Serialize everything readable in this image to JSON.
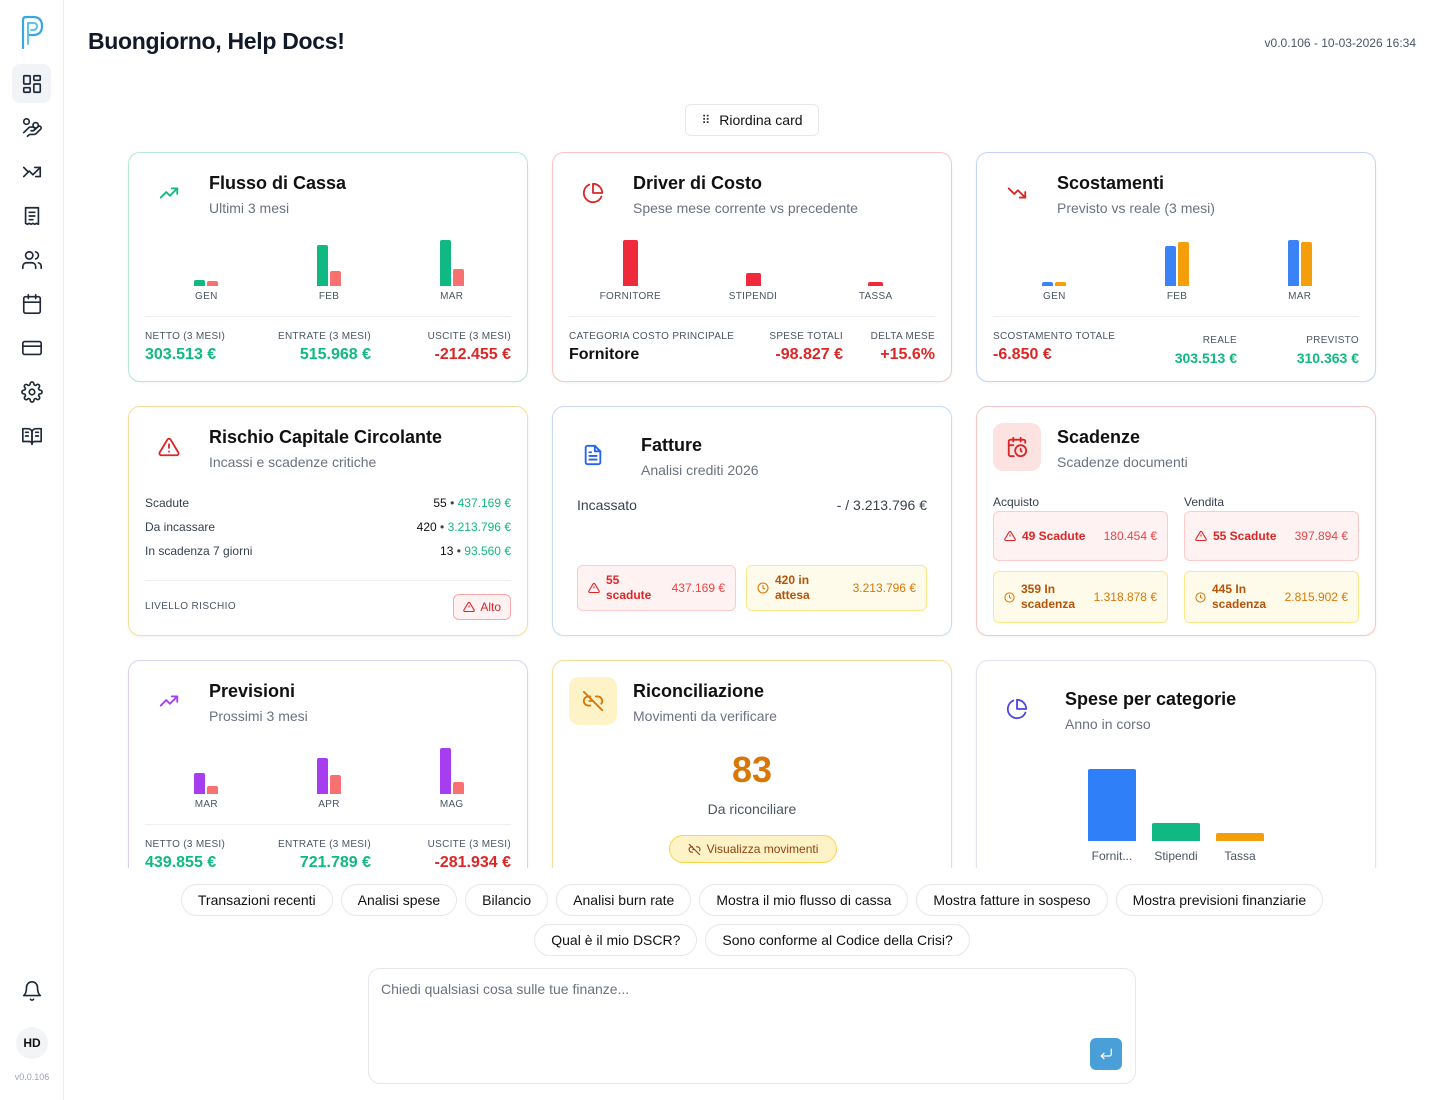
{
  "sidebar": {
    "logo": "p-logo-icon",
    "items": [
      {
        "name": "dashboard",
        "icon": "dashboard-grid-icon",
        "active": true
      },
      {
        "name": "transactions",
        "icon": "hand-coins-icon"
      },
      {
        "name": "trends",
        "icon": "trend-arrows-icon"
      },
      {
        "name": "documents",
        "icon": "receipt-icon"
      },
      {
        "name": "contacts",
        "icon": "users-icon"
      },
      {
        "name": "calendar",
        "icon": "calendar-icon"
      },
      {
        "name": "payments",
        "icon": "credit-card-icon"
      },
      {
        "name": "settings",
        "icon": "gear-icon"
      },
      {
        "name": "guide",
        "icon": "book-open-icon"
      }
    ],
    "avatar": "HD",
    "version": "v0.0.106"
  },
  "header": {
    "greeting": "Buongiorno, Help Docs!",
    "version_stamp": "v0.0.106 - 10-03-2026 16:34"
  },
  "reorder_label": "Riordina card",
  "cards": {
    "cashflow": {
      "title": "Flusso di Cassa",
      "subtitle": "Ultimi 3 mesi",
      "chart_data": {
        "type": "bar",
        "categories": [
          "GEN",
          "FEB",
          "MAR"
        ],
        "series": [
          {
            "values": [
              6000,
              43000,
              48000
            ],
            "color": "#10b981"
          },
          {
            "values": [
              5500,
              16000,
              18000
            ],
            "color": "#f87171"
          }
        ],
        "ylim": [
          0,
          50000
        ]
      },
      "stats": [
        {
          "label": "NETTO (3 MESI)",
          "value": "303.513 €"
        },
        {
          "label": "ENTRATE (3 MESI)",
          "value": "515.968 €"
        },
        {
          "label": "USCITE (3 MESI)",
          "value": "-212.455 €"
        }
      ]
    },
    "cost_driver": {
      "title": "Driver di Costo",
      "subtitle": "Spese mese corrente vs precedente",
      "chart_data": {
        "type": "bar",
        "categories": [
          "FORNITORE",
          "STIPENDI",
          "TASSA"
        ],
        "series": [
          {
            "values": [
              48,
              14,
              4
            ],
            "color": "#ef2b3b"
          }
        ],
        "ylim": [
          0,
          50
        ]
      },
      "stats": [
        {
          "label": "CATEGORIA COSTO PRINCIPALE",
          "value": "Fornitore"
        },
        {
          "label": "SPESE TOTALI",
          "value": "-98.827 €"
        },
        {
          "label": "DELTA MESE",
          "value": "+15.6%"
        }
      ]
    },
    "variance": {
      "title": "Scostamenti",
      "subtitle": "Previsto vs reale (3 mesi)",
      "chart_data": {
        "type": "bar",
        "categories": [
          "GEN",
          "FEB",
          "MAR"
        ],
        "series": [
          {
            "values": [
              4,
              42,
              48
            ],
            "color": "#3b82f6"
          },
          {
            "values": [
              4,
              46,
              46
            ],
            "color": "#f59e0b"
          }
        ],
        "ylim": [
          0,
          50
        ]
      },
      "stats": [
        {
          "label": "SCOSTAMENTO TOTALE",
          "value": "-6.850 €"
        },
        {
          "label": "REALE",
          "value": "303.513 €"
        },
        {
          "label": "PREVISTO",
          "value": "310.363 €"
        }
      ]
    },
    "working_capital": {
      "title": "Rischio Capitale Circolante",
      "subtitle": "Incassi e scadenze critiche",
      "rows": [
        {
          "label": "Scadute",
          "count": "55",
          "amount": "437.169 €"
        },
        {
          "label": "Da incassare",
          "count": "420",
          "amount": "3.213.796 €"
        },
        {
          "label": "In scadenza 7 giorni",
          "count": "13",
          "amount": "93.560 €"
        }
      ],
      "separator": "•",
      "level_label": "LIVELLO RISCHIO",
      "level_value": "Alto"
    },
    "invoices": {
      "title": "Fatture",
      "subtitle": "Analisi crediti 2026",
      "row_label": "Incassato",
      "row_value": "- / 3.213.796 €",
      "overdue": {
        "label_1": "55",
        "label_2": "scadute",
        "value": "437.169 €"
      },
      "pending": {
        "label_1": "420 in",
        "label_2": "attesa",
        "value": "3.213.796 €"
      }
    },
    "deadlines": {
      "title": "Scadenze",
      "subtitle": "Scadenze documenti",
      "purchase_label": "Acquisto",
      "sales_label": "Vendita",
      "purchase_overdue": {
        "label": "49 Scadute",
        "value": "180.454 €"
      },
      "purchase_due": {
        "label_1": "359 In",
        "label_2": "scadenza",
        "value": "1.318.878 €"
      },
      "sales_overdue": {
        "label": "55 Scadute",
        "value": "397.894 €"
      },
      "sales_due": {
        "label_1": "445 In",
        "label_2": "scadenza",
        "value": "2.815.902 €"
      }
    },
    "forecast": {
      "title": "Previsioni",
      "subtitle": "Prossimi 3 mesi",
      "chart_data": {
        "type": "bar",
        "categories": [
          "MAR",
          "APR",
          "MAG"
        ],
        "series": [
          {
            "values": [
              22,
              37,
              48
            ],
            "color": "#a63ef0"
          },
          {
            "values": [
              8,
              20,
              13
            ],
            "color": "#f87171"
          }
        ],
        "ylim": [
          0,
          50
        ]
      },
      "stats": [
        {
          "label": "NETTO (3 MESI)",
          "value": "439.855 €"
        },
        {
          "label": "ENTRATE (3 MESI)",
          "value": "721.789 €"
        },
        {
          "label": "USCITE (3 MESI)",
          "value": "-281.934 €"
        }
      ]
    },
    "reconciliation": {
      "title": "Riconciliazione",
      "subtitle": "Movimenti da verificare",
      "count": "83",
      "count_label": "Da riconciliare",
      "button_label": "Visualizza movimenti"
    },
    "categories": {
      "title": "Spese per categorie",
      "subtitle": "Anno in corso",
      "chart_data": {
        "type": "bar",
        "categories": [
          "Fornit...",
          "Stipendi",
          "Tassa"
        ],
        "series": [
          {
            "values": [
              72,
              18,
              8
            ],
            "colors": [
              "#2f7ff8",
              "#10b981",
              "#f59e0b"
            ]
          }
        ],
        "ylim": [
          0,
          75
        ]
      }
    }
  },
  "suggestions": {
    "row1": [
      "Transazioni recenti",
      "Analisi spese",
      "Bilancio",
      "Analisi burn rate",
      "Mostra il mio flusso di cassa",
      "Mostra fatture in sospeso",
      "Mostra previsioni finanziarie"
    ],
    "row2": [
      "Qual è il mio DSCR?",
      "Sono conforme al Codice della Crisi?"
    ]
  },
  "chat": {
    "placeholder": "Chiedi qualsiasi cosa sulle tue finanze..."
  }
}
